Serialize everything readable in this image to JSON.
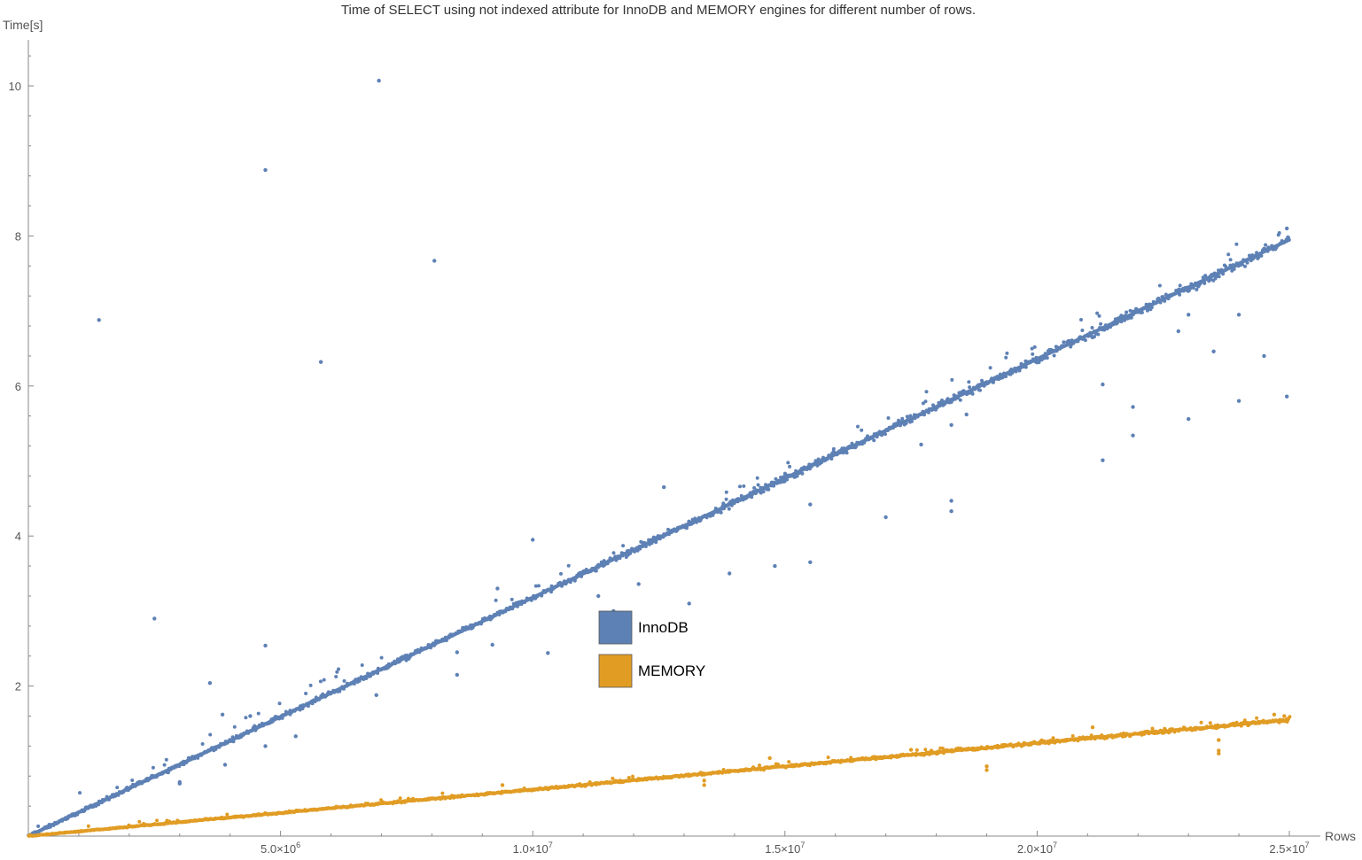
{
  "chart_data": {
    "type": "scatter",
    "title": "Time of SELECT using not indexed attribute for InnoDB and MEMORY engines for different number of rows.",
    "xlabel": "Rows",
    "ylabel": "Time[s]",
    "xlim": [
      0,
      25000000
    ],
    "ylim": [
      0,
      10.5
    ],
    "grid": false,
    "legend_position": "center",
    "x_ticks": [
      {
        "value": 5000000,
        "mantissa": "5.0",
        "exp": "6"
      },
      {
        "value": 10000000,
        "mantissa": "1.0",
        "exp": "7"
      },
      {
        "value": 15000000,
        "mantissa": "1.5",
        "exp": "7"
      },
      {
        "value": 20000000,
        "mantissa": "2.0",
        "exp": "7"
      },
      {
        "value": 25000000,
        "mantissa": "2.5",
        "exp": "7"
      }
    ],
    "y_ticks": [
      2,
      4,
      6,
      8,
      10
    ],
    "series": [
      {
        "name": "InnoDB",
        "color": "#5e81b5",
        "trend": {
          "x": [
            0,
            25000000
          ],
          "y": [
            0,
            7.95
          ]
        },
        "points": [
          [
            1400000,
            6.88
          ],
          [
            2500000,
            2.9
          ],
          [
            3600000,
            2.04
          ],
          [
            3850000,
            1.62
          ],
          [
            4700000,
            2.54
          ],
          [
            4700000,
            8.88
          ],
          [
            5800000,
            6.32
          ],
          [
            6950000,
            10.07
          ],
          [
            8050000,
            7.67
          ],
          [
            8500000,
            2.15
          ],
          [
            8500000,
            2.45
          ],
          [
            9300000,
            3.3
          ],
          [
            10000000,
            3.95
          ],
          [
            10300000,
            2.44
          ],
          [
            11300000,
            3.2
          ],
          [
            12600000,
            4.65
          ],
          [
            13100000,
            3.1
          ],
          [
            13900000,
            3.5
          ],
          [
            14800000,
            3.6
          ],
          [
            15500000,
            3.65
          ],
          [
            15500000,
            4.42
          ],
          [
            17000000,
            4.25
          ],
          [
            17700000,
            5.22
          ],
          [
            18300000,
            4.47
          ],
          [
            18300000,
            4.33
          ],
          [
            18300000,
            5.48
          ],
          [
            18600000,
            5.62
          ],
          [
            21300000,
            5.01
          ],
          [
            21300000,
            6.02
          ],
          [
            21900000,
            5.72
          ],
          [
            21900000,
            5.34
          ],
          [
            22800000,
            6.73
          ],
          [
            23000000,
            6.95
          ],
          [
            23000000,
            5.56
          ],
          [
            23500000,
            6.46
          ],
          [
            24000000,
            6.95
          ],
          [
            24000000,
            5.8
          ],
          [
            24500000,
            6.4
          ],
          [
            24950000,
            5.86
          ],
          [
            24950000,
            8.1
          ],
          [
            3000000,
            0.7
          ],
          [
            3000000,
            0.72
          ],
          [
            3900000,
            0.95
          ],
          [
            5300000,
            1.33
          ],
          [
            4700000,
            1.2
          ],
          [
            9200000,
            2.55
          ],
          [
            4400000,
            1.6
          ],
          [
            6900000,
            1.88
          ],
          [
            11600000,
            3.0
          ],
          [
            12100000,
            3.36
          ]
        ]
      },
      {
        "name": "MEMORY",
        "color": "#e19c24",
        "trend": {
          "x": [
            0,
            25000000
          ],
          "y": [
            0,
            1.55
          ]
        },
        "points": [
          [
            13400000,
            0.68
          ],
          [
            13400000,
            0.74
          ],
          [
            19000000,
            0.88
          ],
          [
            19000000,
            0.93
          ],
          [
            23600000,
            1.1
          ],
          [
            23600000,
            1.14
          ],
          [
            23600000,
            1.28
          ],
          [
            24700000,
            1.62
          ],
          [
            24900000,
            1.6
          ],
          [
            9400000,
            0.68
          ],
          [
            14700000,
            1.04
          ],
          [
            21100000,
            1.45
          ],
          [
            17500000,
            1.15
          ]
        ]
      }
    ]
  }
}
